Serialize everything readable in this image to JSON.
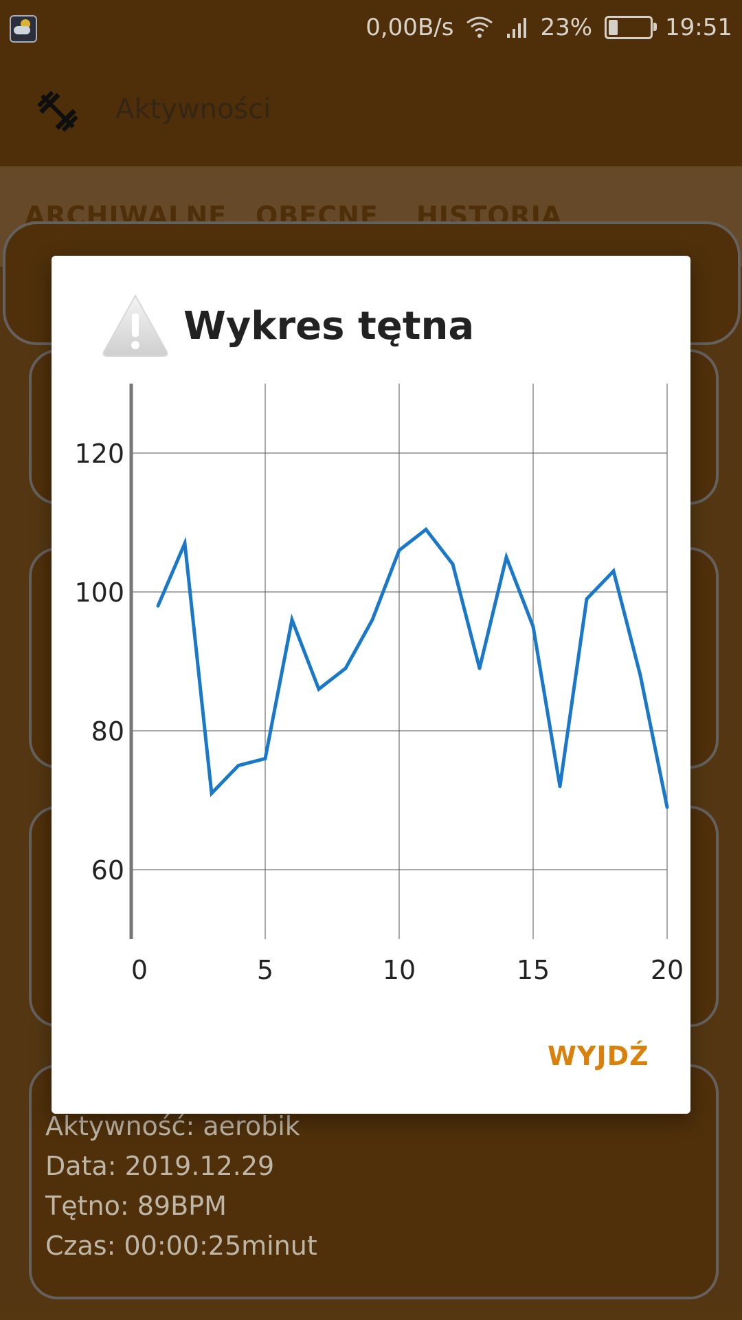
{
  "status_bar": {
    "net_speed": "0,00B/s",
    "battery_percent": "23%",
    "battery_level": 0.23,
    "time": "19:51",
    "icons": [
      "weather-icon",
      "wifi-icon",
      "signal-icon",
      "battery-icon"
    ]
  },
  "app_bar": {
    "title": "Aktywności",
    "icon": "dumbbell-icon"
  },
  "tabs": [
    {
      "label": "ARCHIWALNE"
    },
    {
      "label": "OBECNE"
    },
    {
      "label": "HISTORIA"
    }
  ],
  "last_card": {
    "activity_label": "Aktywność:",
    "activity_value": "aerobik",
    "date_label": "Data:",
    "date_value": "2019.12.29",
    "pulse_label": "Tętno:",
    "pulse_value": "89BPM",
    "time_label": "Czas:",
    "time_value": "00:00:25minut"
  },
  "dialog": {
    "title": "Wykres tętna",
    "icon": "warning-icon",
    "exit_label": "WYJDŹ"
  },
  "chart_data": {
    "type": "line",
    "title": "",
    "xlabel": "",
    "ylabel": "",
    "xlim": [
      0,
      20
    ],
    "ylim": [
      50,
      130
    ],
    "x_ticks": [
      0,
      5,
      10,
      15,
      20
    ],
    "y_ticks": [
      60,
      80,
      100,
      120
    ],
    "grid": true,
    "series": [
      {
        "color": "#1a78c8",
        "x": [
          1,
          2,
          3,
          4,
          5,
          6,
          7,
          8,
          9,
          10,
          11,
          12,
          13,
          14,
          15,
          16,
          17,
          18,
          19,
          20
        ],
        "y": [
          98,
          107,
          71,
          75,
          76,
          96,
          86,
          89,
          96,
          106,
          109,
          104,
          89,
          105,
          95,
          72,
          99,
          103,
          88,
          69
        ]
      }
    ]
  }
}
